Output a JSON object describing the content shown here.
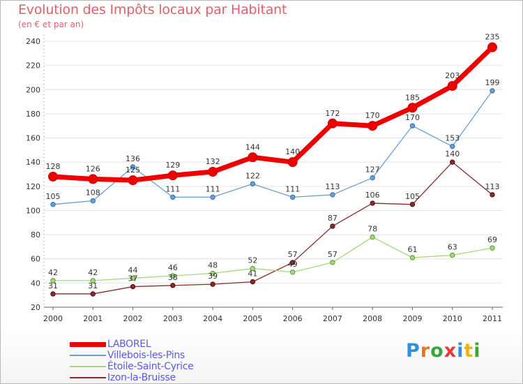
{
  "header": {
    "title": "Evolution des Impôts locaux par Habitant",
    "subtitle": "(en € et par an)"
  },
  "brand": {
    "logo_letters": [
      "P",
      "r",
      "o",
      "x",
      "i",
      "t",
      "i"
    ],
    "logo_colors": [
      "#2f8fd8",
      "#e8761c",
      "#3aa53a",
      "#e03c3c",
      "#2f8fd8",
      "#e8b41c",
      "#3aa53a"
    ]
  },
  "chart_data": {
    "type": "line",
    "title": "Evolution des Impôts locaux par Habitant",
    "subtitle": "(en € et par an)",
    "x": [
      "2000",
      "2001",
      "2002",
      "2003",
      "2004",
      "2005",
      "2006",
      "2007",
      "2008",
      "2009",
      "2010",
      "2011"
    ],
    "ylim": [
      20,
      240
    ],
    "yticks": [
      "20",
      "40",
      "60",
      "80",
      "100",
      "120",
      "140",
      "160",
      "180",
      "200",
      "220",
      "240"
    ],
    "grid": "horizontal",
    "legend_position": "bottom-left",
    "series": [
      {
        "name": "LABOREL",
        "color": "#ee0000",
        "values": [
          128,
          126,
          125,
          129,
          132,
          144,
          140,
          172,
          170,
          185,
          203,
          235
        ],
        "labels": [
          "128",
          "126",
          "125",
          "129",
          "132",
          "144",
          "140",
          "172",
          "170",
          "185",
          "203",
          "235"
        ]
      },
      {
        "name": "Villebois-les-Pins",
        "color": "#6aa0d0",
        "values": [
          105,
          108,
          136,
          111,
          111,
          122,
          111,
          113,
          127,
          170,
          153,
          199
        ],
        "labels": [
          "105",
          "108",
          "136",
          "111",
          "111",
          "122",
          "111",
          "113",
          "127",
          "170",
          "153",
          "199"
        ]
      },
      {
        "name": "Étoile-Saint-Cyrice",
        "color": "#a6d87a",
        "values": [
          42,
          42,
          44,
          46,
          48,
          52,
          49,
          57,
          78,
          61,
          63,
          69
        ],
        "labels": [
          "42",
          "42",
          "44",
          "46",
          "48",
          "52",
          "49",
          "57",
          "78",
          "61",
          "63",
          "69"
        ]
      },
      {
        "name": "Izon-la-Bruisse",
        "color": "#8a2a2a",
        "values": [
          31,
          31,
          37,
          38,
          39,
          41,
          57,
          87,
          106,
          105,
          140,
          113
        ],
        "labels": [
          "31",
          "31",
          "37",
          "38",
          "39",
          "41",
          "57",
          "87",
          "106",
          "105",
          "140",
          "113"
        ]
      }
    ]
  }
}
